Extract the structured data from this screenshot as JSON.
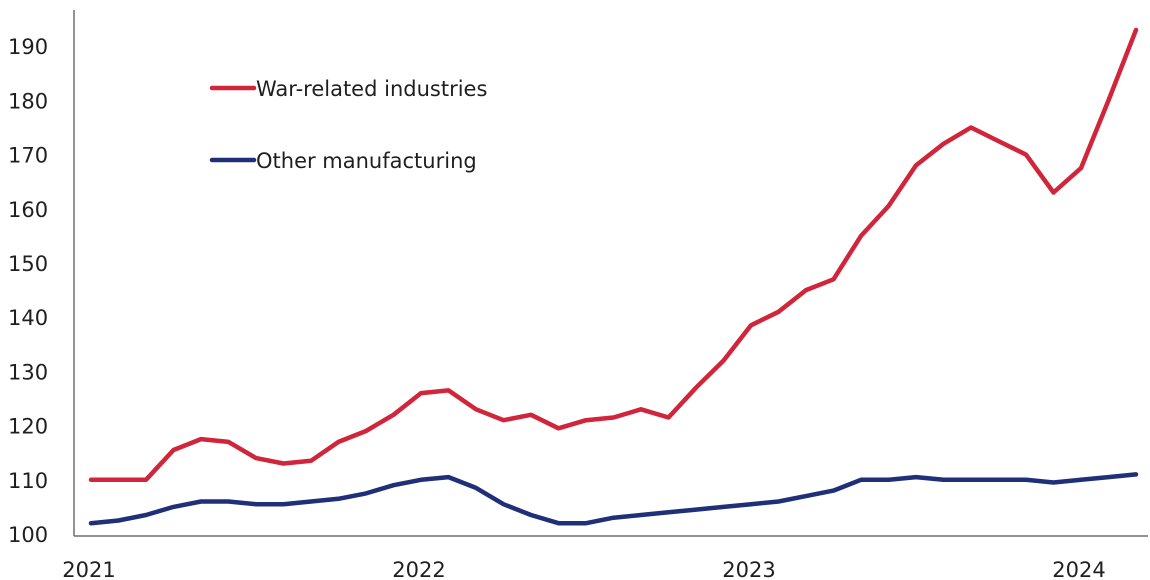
{
  "chart_data": {
    "type": "line",
    "x_start": "2021-01",
    "x_step_months": 1,
    "x_ticks": [
      "2021",
      "2022",
      "2023",
      "2024"
    ],
    "y_ticks": [
      100,
      110,
      120,
      130,
      140,
      150,
      160,
      170,
      180,
      190
    ],
    "ylim": [
      100,
      195
    ],
    "grid": false,
    "legend_position": "top-left",
    "series": [
      {
        "name": "War-related industries",
        "color": "#d0253a",
        "values": [
          110,
          110,
          110,
          115.5,
          117.5,
          117,
          114,
          113,
          113.5,
          117,
          119,
          122,
          126,
          126.5,
          123,
          121,
          122,
          119.5,
          121,
          121.5,
          123,
          121.5,
          127,
          132,
          138.5,
          141,
          145,
          147,
          155,
          160.5,
          168,
          172,
          175,
          172.5,
          170,
          163,
          167.5,
          180,
          193
        ]
      },
      {
        "name": "Other manufacturing",
        "color": "#1f2f78",
        "values": [
          102,
          102.5,
          103.5,
          105,
          106,
          106,
          105.5,
          105.5,
          106,
          106.5,
          107.5,
          109,
          110,
          110.5,
          108.5,
          105.5,
          103.5,
          102,
          102,
          103,
          103.5,
          104,
          104.5,
          105,
          105.5,
          106,
          107,
          108,
          110,
          110,
          110.5,
          110,
          110,
          110,
          110,
          109.5,
          110,
          110.5,
          111
        ]
      }
    ]
  }
}
